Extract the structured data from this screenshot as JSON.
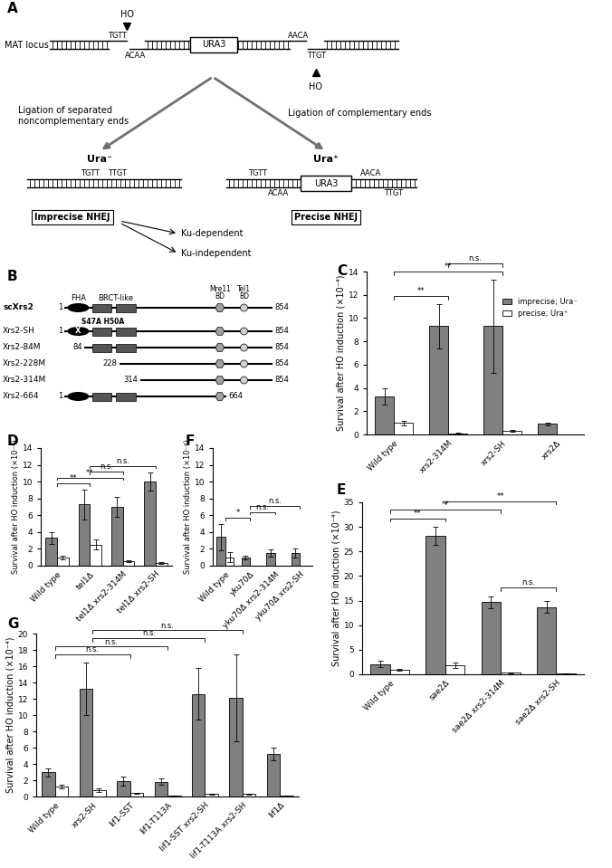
{
  "diagram_A": {
    "label": "A",
    "locus": "MAT locus",
    "cut_sites": [
      "HO",
      "HO"
    ],
    "top_strand": [
      "TGTT",
      "AACA"
    ],
    "bottom_strand": [
      "ACAA",
      "TTGT"
    ],
    "marker": "URA3",
    "left_path": {
      "text": "Ligation of separated\nnoncomplementary ends",
      "phenotype": "Ura⁻",
      "product": [
        "TGTT",
        "TTGT"
      ],
      "outcome": "Imprecise NHEJ",
      "branches": [
        "Ku-dependent",
        "Ku-independent"
      ]
    },
    "right_path": {
      "text": "Ligation of complementary ends",
      "phenotype": "Ura⁺",
      "product_top": [
        "TGTT",
        "AACA"
      ],
      "product_bottom": [
        "ACAA",
        "TTGT"
      ],
      "product_marker": "URA3",
      "outcome": "Precise NHEJ"
    }
  },
  "diagram_B": {
    "label": "B",
    "protein": "scXrs2",
    "start": 1,
    "end": 854,
    "domains": {
      "fha": "FHA",
      "brct": "BRCT-like",
      "mre11": "Mre11\nBD",
      "tel1": "Tel1\nBD"
    },
    "constructs": [
      {
        "name": "Xrs2-SH",
        "start": 1,
        "end": 854,
        "mutation": "S47A H50A",
        "mutation_mark": "X"
      },
      {
        "name": "Xrs2-84M",
        "start": 84,
        "end": 854
      },
      {
        "name": "Xrs2-228M",
        "start": 228,
        "end": 854
      },
      {
        "name": "Xrs2-314M",
        "start": 314,
        "end": 854
      },
      {
        "name": "Xrs2-664",
        "start": 1,
        "end": 664
      }
    ]
  },
  "chart_data": [
    {
      "panel": "C",
      "type": "bar",
      "ylabel": "Survival after HO induction (×10⁻⁴)",
      "categories": [
        "Wild type",
        "xrs2-314M",
        "xrs2-SH",
        "xrs2Δ"
      ],
      "series": [
        {
          "name": "imprecise; Ura⁻",
          "color": "#808080",
          "values": [
            3.3,
            9.3,
            9.3,
            0.9
          ],
          "errors": [
            0.7,
            1.9,
            4.0,
            0.1
          ]
        },
        {
          "name": "precise; Ura⁺",
          "color": "#ffffff",
          "values": [
            1.0,
            0.1,
            0.3,
            null
          ],
          "errors": [
            0.2,
            0.05,
            0.1,
            null
          ]
        }
      ],
      "ylim": [
        0,
        14
      ],
      "yticks": [
        0,
        2,
        4,
        6,
        8,
        10,
        12,
        14
      ],
      "legend": "upper right",
      "significance": [
        {
          "from": 0,
          "to": 1,
          "label": "**"
        },
        {
          "from": 0,
          "to": 2,
          "label": "**"
        },
        {
          "from": 1,
          "to": 2,
          "label": "n.s."
        }
      ]
    },
    {
      "panel": "D",
      "type": "bar",
      "ylabel": "Survival after HO induction (×10⁻⁴)",
      "categories": [
        "Wild type",
        "tel1Δ",
        "tel1Δ xrs2-314M",
        "tel1Δ xrs2-SH"
      ],
      "series": [
        {
          "name": "imprecise; Ura⁻",
          "color": "#808080",
          "values": [
            3.3,
            7.3,
            7.0,
            10.0
          ],
          "errors": [
            0.7,
            1.8,
            1.2,
            1.1
          ]
        },
        {
          "name": "precise; Ura⁺",
          "color": "#ffffff",
          "values": [
            1.0,
            2.5,
            0.5,
            0.3
          ],
          "errors": [
            0.2,
            0.6,
            0.1,
            0.1
          ]
        }
      ],
      "ylim": [
        0,
        14
      ],
      "yticks": [
        0,
        2,
        4,
        6,
        8,
        10,
        12,
        14
      ],
      "significance": [
        {
          "from": 0,
          "to": 1,
          "label": "**"
        },
        {
          "from": 0,
          "to": 2,
          "label": "**"
        },
        {
          "from": 1,
          "to": 2,
          "label": "n.s."
        },
        {
          "from": 1,
          "to": 3,
          "label": "n.s."
        }
      ]
    },
    {
      "panel": "E",
      "type": "bar",
      "ylabel": "Survival after HO induction (×10⁻⁴)",
      "categories": [
        "Wild type",
        "sae2Δ",
        "sae2Δ xrs2-314M",
        "sae2Δ xrs2-SH"
      ],
      "series": [
        {
          "name": "imprecise; Ura⁻",
          "color": "#808080",
          "values": [
            2.1,
            28.2,
            14.7,
            13.7
          ],
          "errors": [
            0.7,
            1.8,
            1.2,
            1.2
          ]
        },
        {
          "name": "precise; Ura⁺",
          "color": "#ffffff",
          "values": [
            0.9,
            1.8,
            0.3,
            0.2
          ],
          "errors": [
            0.2,
            0.6,
            0.05,
            0.05
          ]
        }
      ],
      "ylim": [
        0,
        35
      ],
      "yticks": [
        0,
        5,
        10,
        15,
        20,
        25,
        30,
        35
      ],
      "significance": [
        {
          "from": 2,
          "to": 3,
          "label": "n.s."
        },
        {
          "from": 0,
          "to": 1,
          "label": "**"
        },
        {
          "from": 0,
          "to": 2,
          "label": "**"
        },
        {
          "from": 1,
          "to": 3,
          "label": "**"
        }
      ]
    },
    {
      "panel": "F",
      "type": "bar",
      "ylabel": "Survival after HO induction (×10⁻⁴)",
      "categories": [
        "Wild type",
        "yku70Δ",
        "yku70Δ xrs2-314M",
        "yku70Δ xrs2-SH"
      ],
      "series": [
        {
          "name": "imprecise; Ura⁻",
          "color": "#808080",
          "values": [
            3.4,
            1.0,
            1.5,
            1.5
          ],
          "errors": [
            1.6,
            0.2,
            0.4,
            0.5
          ]
        },
        {
          "name": "precise; Ura⁺",
          "color": "#ffffff",
          "values": [
            1.0,
            null,
            null,
            null
          ],
          "errors": [
            0.6,
            null,
            null,
            null
          ]
        }
      ],
      "ylim": [
        0,
        14
      ],
      "yticks": [
        0,
        2,
        4,
        6,
        8,
        10,
        12,
        14
      ],
      "significance": [
        {
          "from": 0,
          "to": 1,
          "label": "*"
        },
        {
          "from": 1,
          "to": 2,
          "label": "n.s."
        },
        {
          "from": 1,
          "to": 3,
          "label": "n.s."
        }
      ]
    },
    {
      "panel": "G",
      "type": "bar",
      "ylabel": "Survival after HO induction (×10⁻⁴)",
      "categories": [
        "Wild type",
        "xrs2-SH",
        "lif1-SST",
        "lif1-T113A",
        "lif1-SST xrs2-SH",
        "lif1-T113A xrs2-SH",
        "lif1Δ"
      ],
      "series": [
        {
          "name": "imprecise; Ura⁻",
          "color": "#808080",
          "values": [
            3.0,
            13.2,
            1.9,
            1.8,
            12.6,
            12.1,
            5.2
          ],
          "errors": [
            0.5,
            3.2,
            0.6,
            0.4,
            3.2,
            5.3,
            0.8
          ]
        },
        {
          "name": "precise; Ura⁺",
          "color": "#ffffff",
          "values": [
            1.2,
            0.8,
            0.4,
            0.1,
            0.3,
            0.3,
            0.1
          ],
          "errors": [
            0.2,
            0.2,
            0.1,
            0.05,
            0.05,
            0.05,
            0.05
          ]
        }
      ],
      "ylim": [
        0,
        20
      ],
      "yticks": [
        0,
        2,
        4,
        6,
        8,
        10,
        12,
        14,
        16,
        18,
        20
      ],
      "significance": [
        {
          "from": 0,
          "to": 2,
          "label": "n.s."
        },
        {
          "from": 0,
          "to": 3,
          "label": "n.s."
        },
        {
          "from": 1,
          "to": 4,
          "label": "n.s."
        },
        {
          "from": 1,
          "to": 5,
          "label": "n.s."
        }
      ]
    }
  ]
}
